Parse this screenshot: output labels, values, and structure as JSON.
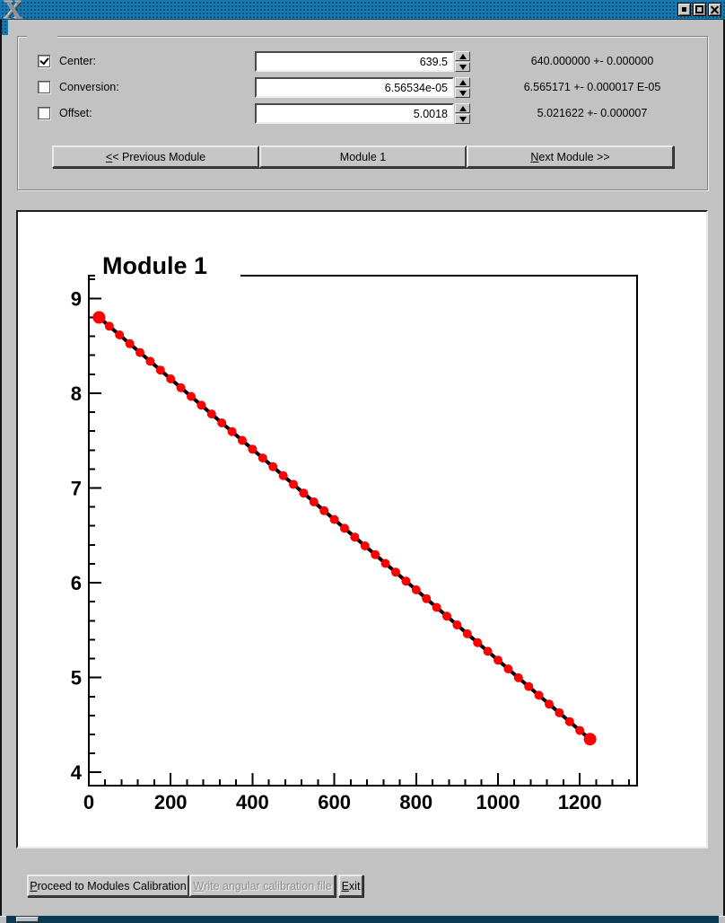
{
  "titlebar": {
    "logo": "X",
    "buttons": [
      {
        "name": "minimize"
      },
      {
        "name": "maximize"
      },
      {
        "name": "close"
      }
    ]
  },
  "panel": {
    "rows": [
      {
        "label": "Center:",
        "checked": true,
        "value": "639.5",
        "fit": "640.000000 +- 0.000000"
      },
      {
        "label": "Conversion:",
        "checked": false,
        "value": "6.56534e-05",
        "fit": "6.565171 +- 0.000017 E-05"
      },
      {
        "label": "Offset:",
        "checked": false,
        "value": "5.0018",
        "fit": "5.021622 +- 0.000007"
      }
    ],
    "nav": {
      "prev_mnemonic": "<",
      "prev_rest": "< Previous Module",
      "current": "Module 1",
      "next_mnemonic": "N",
      "next_rest": "ext Module >>"
    }
  },
  "chart_data": {
    "type": "scatter",
    "title": "Module 1",
    "xlabel": "",
    "ylabel": "",
    "xlim": [
      0,
      1340
    ],
    "ylim": [
      3.86,
      9.24
    ],
    "x_ticks": [
      0,
      200,
      400,
      600,
      800,
      1000,
      1200
    ],
    "x_minor_step": 40,
    "y_ticks": [
      4,
      5,
      6,
      7,
      8,
      9
    ],
    "y_minor_step": 0.2,
    "grid": false,
    "line_color": "#000000",
    "marker_color": "#ff0000",
    "x": [
      25,
      50,
      75,
      100,
      125,
      150,
      175,
      200,
      225,
      250,
      275,
      300,
      325,
      350,
      375,
      400,
      425,
      450,
      475,
      500,
      525,
      550,
      575,
      600,
      625,
      650,
      675,
      700,
      725,
      750,
      775,
      800,
      825,
      850,
      875,
      900,
      925,
      950,
      975,
      1000,
      1025,
      1050,
      1075,
      1100,
      1125,
      1150,
      1175,
      1200,
      1225
    ],
    "y": [
      8.8,
      8.707,
      8.615,
      8.522,
      8.429,
      8.336,
      8.244,
      8.151,
      8.058,
      7.966,
      7.873,
      7.78,
      7.687,
      7.595,
      7.502,
      7.409,
      7.316,
      7.224,
      7.131,
      7.038,
      6.946,
      6.853,
      6.76,
      6.667,
      6.575,
      6.482,
      6.389,
      6.297,
      6.204,
      6.111,
      6.018,
      5.926,
      5.833,
      5.74,
      5.647,
      5.555,
      5.462,
      5.369,
      5.277,
      5.184,
      5.091,
      4.998,
      4.906,
      4.813,
      4.72,
      4.628,
      4.535,
      4.442,
      4.35
    ]
  },
  "footer": {
    "buttons": [
      {
        "mnemonic": "P",
        "rest": "roceed to Modules Calibration",
        "enabled": true
      },
      {
        "mnemonic": "W",
        "rest": "rite angular calibration file",
        "enabled": false
      },
      {
        "mnemonic": "E",
        "rest": "xit",
        "enabled": true
      }
    ]
  }
}
